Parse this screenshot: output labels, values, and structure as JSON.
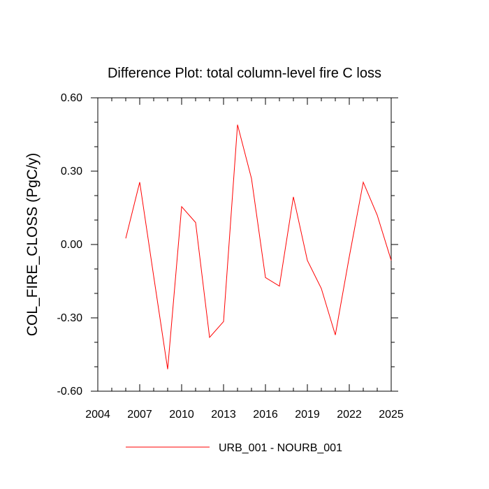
{
  "chart_data": {
    "type": "line",
    "title": "Difference Plot: total column-level fire C loss",
    "xlabel": "",
    "ylabel": "COL_FIRE_CLOSS  (PgC/y)",
    "xlim": [
      2004,
      2025
    ],
    "ylim": [
      -0.6,
      0.6
    ],
    "x_ticks": [
      "2004",
      "2007",
      "2010",
      "2013",
      "2016",
      "2019",
      "2022",
      "2025"
    ],
    "y_ticks": [
      "-0.60",
      "-0.30",
      "0.00",
      "0.30",
      "0.60"
    ],
    "x_tick_values": [
      2004,
      2007,
      2010,
      2013,
      2016,
      2019,
      2022,
      2025
    ],
    "y_tick_values": [
      -0.6,
      -0.3,
      0.0,
      0.3,
      0.6
    ],
    "grid": false,
    "legend_position": "bottom-center",
    "series": [
      {
        "name": "URB_001 - NOURB_001",
        "color": "#ff0000",
        "x": [
          2006,
          2007,
          2008,
          2009,
          2010,
          2011,
          2012,
          2013,
          2014,
          2015,
          2016,
          2017,
          2018,
          2019,
          2020,
          2021,
          2022,
          2023,
          2024,
          2025
        ],
        "values": [
          0.025,
          0.255,
          -0.13,
          -0.51,
          0.155,
          0.09,
          -0.38,
          -0.315,
          0.49,
          0.27,
          -0.135,
          -0.17,
          0.195,
          -0.065,
          -0.18,
          -0.37,
          -0.05,
          0.255,
          0.12,
          -0.065
        ]
      }
    ]
  }
}
